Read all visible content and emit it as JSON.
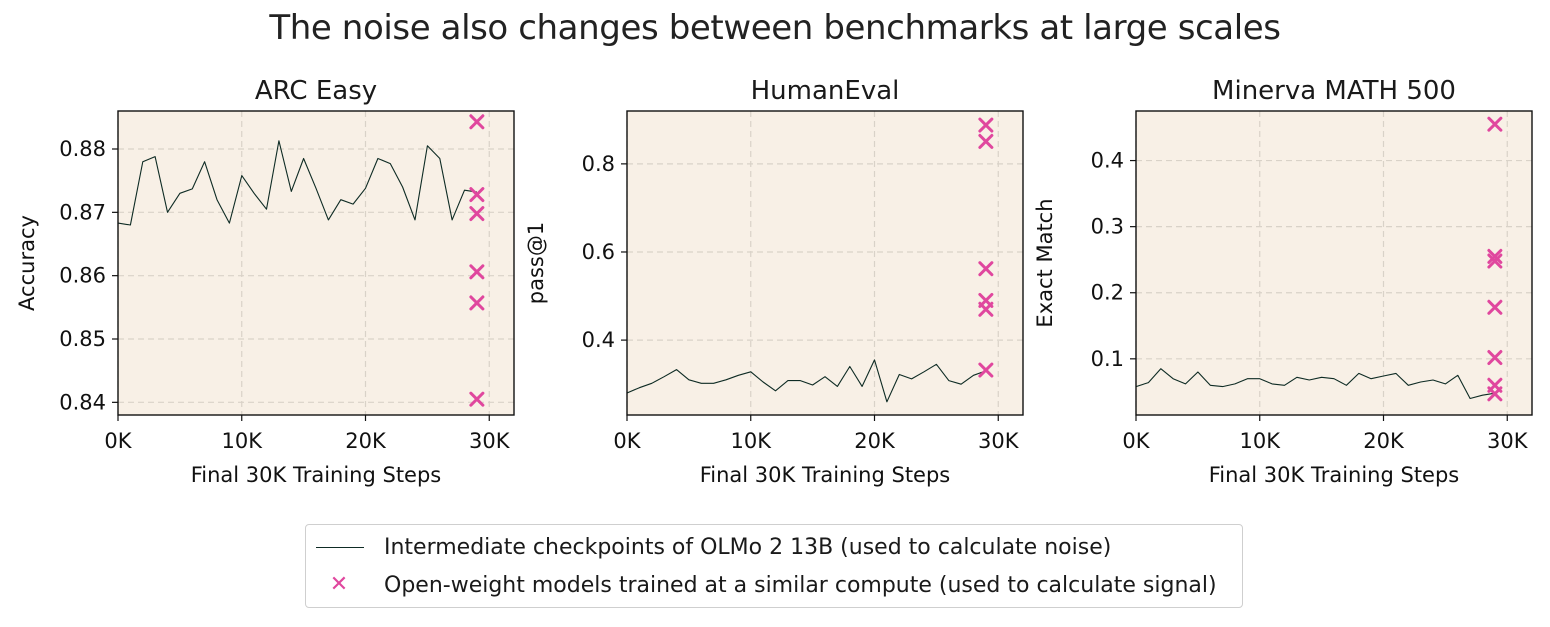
{
  "figure": {
    "title": "The noise also changes between benchmarks at large scales"
  },
  "colors": {
    "background": "#f8f0e6",
    "line": "#0e2b24",
    "marker": "#e0479e",
    "grid": "#d9d2c8"
  },
  "legend": {
    "line_label": "Intermediate checkpoints of OLMo 2 13B (used to calculate noise)",
    "marker_label": "Open-weight models trained at a similar compute (used to calculate signal)"
  },
  "chart_data": [
    {
      "type": "line",
      "title": "ARC Easy",
      "xlabel": "Final 30K Training Steps",
      "ylabel": "Accuracy",
      "xlim": [
        0,
        32000
      ],
      "ylim": [
        0.838,
        0.886
      ],
      "x_ticks": [
        0,
        10000,
        20000,
        30000
      ],
      "x_tick_labels": [
        "0K",
        "10K",
        "20K",
        "30K"
      ],
      "y_ticks": [
        0.84,
        0.85,
        0.86,
        0.87,
        0.88
      ],
      "y_tick_labels": [
        "0.84",
        "0.85",
        "0.86",
        "0.87",
        "0.88"
      ],
      "grid": true,
      "series": [
        {
          "kind": "line",
          "x": [
            0,
            1000,
            2000,
            3000,
            4000,
            5000,
            6000,
            7000,
            8000,
            9000,
            10000,
            11000,
            12000,
            13000,
            14000,
            15000,
            16000,
            17000,
            18000,
            19000,
            20000,
            21000,
            22000,
            23000,
            24000,
            25000,
            26000,
            27000,
            28000,
            29000
          ],
          "y": [
            0.8683,
            0.868,
            0.878,
            0.8788,
            0.87,
            0.873,
            0.8737,
            0.878,
            0.872,
            0.8683,
            0.8758,
            0.873,
            0.8705,
            0.8813,
            0.8733,
            0.8785,
            0.8738,
            0.8688,
            0.872,
            0.8713,
            0.8738,
            0.8785,
            0.8777,
            0.874,
            0.8688,
            0.8805,
            0.8785,
            0.8688,
            0.8735,
            0.8732
          ]
        },
        {
          "kind": "scatter",
          "x": [
            29000,
            29000,
            29000,
            29000,
            29000,
            29000
          ],
          "y": [
            0.8843,
            0.8728,
            0.8698,
            0.8606,
            0.8557,
            0.8405
          ]
        }
      ]
    },
    {
      "type": "line",
      "title": "HumanEval",
      "xlabel": "Final 30K Training Steps",
      "ylabel": "pass@1",
      "xlim": [
        0,
        32000
      ],
      "ylim": [
        0.23,
        0.92
      ],
      "x_ticks": [
        0,
        10000,
        20000,
        30000
      ],
      "x_tick_labels": [
        "0K",
        "10K",
        "20K",
        "30K"
      ],
      "y_ticks": [
        0.4,
        0.6,
        0.8
      ],
      "y_tick_labels": [
        "0.4",
        "0.6",
        "0.8"
      ],
      "grid": true,
      "series": [
        {
          "kind": "line",
          "x": [
            0,
            1000,
            2000,
            3000,
            4000,
            5000,
            6000,
            7000,
            8000,
            9000,
            10000,
            11000,
            12000,
            13000,
            14000,
            15000,
            16000,
            17000,
            18000,
            19000,
            20000,
            21000,
            22000,
            23000,
            24000,
            25000,
            26000,
            27000,
            28000,
            29000
          ],
          "y": [
            0.28,
            0.292,
            0.302,
            0.317,
            0.333,
            0.31,
            0.302,
            0.302,
            0.31,
            0.32,
            0.328,
            0.305,
            0.285,
            0.308,
            0.308,
            0.298,
            0.317,
            0.295,
            0.34,
            0.295,
            0.355,
            0.26,
            0.322,
            0.312,
            0.328,
            0.345,
            0.308,
            0.3,
            0.32,
            0.33
          ]
        },
        {
          "kind": "scatter",
          "x": [
            29000,
            29000,
            29000,
            29000,
            29000,
            29000
          ],
          "y": [
            0.888,
            0.851,
            0.562,
            0.49,
            0.47,
            0.332
          ]
        }
      ]
    },
    {
      "type": "line",
      "title": "Minerva MATH 500",
      "xlabel": "Final 30K Training Steps",
      "ylabel": "Exact Match",
      "xlim": [
        0,
        32000
      ],
      "ylim": [
        0.015,
        0.475
      ],
      "x_ticks": [
        0,
        10000,
        20000,
        30000
      ],
      "x_tick_labels": [
        "0K",
        "10K",
        "20K",
        "30K"
      ],
      "y_ticks": [
        0.1,
        0.2,
        0.3,
        0.4
      ],
      "y_tick_labels": [
        "0.1",
        "0.2",
        "0.3",
        "0.4"
      ],
      "grid": true,
      "series": [
        {
          "kind": "line",
          "x": [
            0,
            1000,
            2000,
            3000,
            4000,
            5000,
            6000,
            7000,
            8000,
            9000,
            10000,
            11000,
            12000,
            13000,
            14000,
            15000,
            16000,
            17000,
            18000,
            19000,
            20000,
            21000,
            22000,
            23000,
            24000,
            25000,
            26000,
            27000,
            28000,
            29000
          ],
          "y": [
            0.058,
            0.064,
            0.085,
            0.07,
            0.062,
            0.08,
            0.06,
            0.058,
            0.062,
            0.07,
            0.07,
            0.062,
            0.06,
            0.072,
            0.068,
            0.072,
            0.07,
            0.06,
            0.078,
            0.07,
            0.074,
            0.078,
            0.06,
            0.065,
            0.068,
            0.062,
            0.075,
            0.04,
            0.045,
            0.048
          ]
        },
        {
          "kind": "scatter",
          "x": [
            29000,
            29000,
            29000,
            29000,
            29000,
            29000,
            29000
          ],
          "y": [
            0.455,
            0.255,
            0.248,
            0.178,
            0.102,
            0.06,
            0.047
          ]
        }
      ]
    }
  ]
}
